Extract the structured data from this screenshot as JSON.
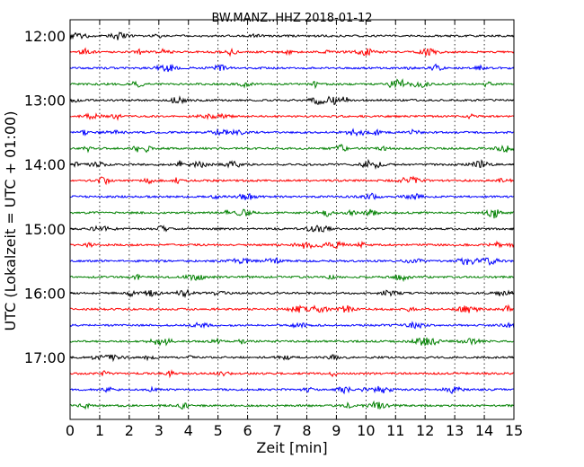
{
  "chart_data": {
    "type": "line",
    "title": "BW.MANZ..HHZ 2018-01-12",
    "xlabel": "Zeit  [min]",
    "ylabel": "UTC (Lokalzeit = UTC + 01:00)",
    "xlim": [
      0,
      15
    ],
    "x_ticks": [
      "0",
      "1",
      "2",
      "3",
      "4",
      "5",
      "6",
      "7",
      "8",
      "9",
      "10",
      "11",
      "12",
      "13",
      "14",
      "15"
    ],
    "y_ticks": [
      "12:00",
      "13:00",
      "14:00",
      "15:00",
      "16:00",
      "17:00"
    ],
    "grid": "vertical dotted",
    "colors": [
      "#000000",
      "#ff0000",
      "#0000ff",
      "#008000"
    ],
    "traces": [
      "12:00",
      "12:15",
      "12:30",
      "12:45",
      "13:00",
      "13:15",
      "13:30",
      "13:45",
      "14:00",
      "14:15",
      "14:30",
      "14:45",
      "15:00",
      "15:15",
      "15:30",
      "15:45",
      "16:00",
      "16:15",
      "16:30",
      "16:45",
      "17:00",
      "17:15",
      "17:30",
      "17:45"
    ]
  }
}
